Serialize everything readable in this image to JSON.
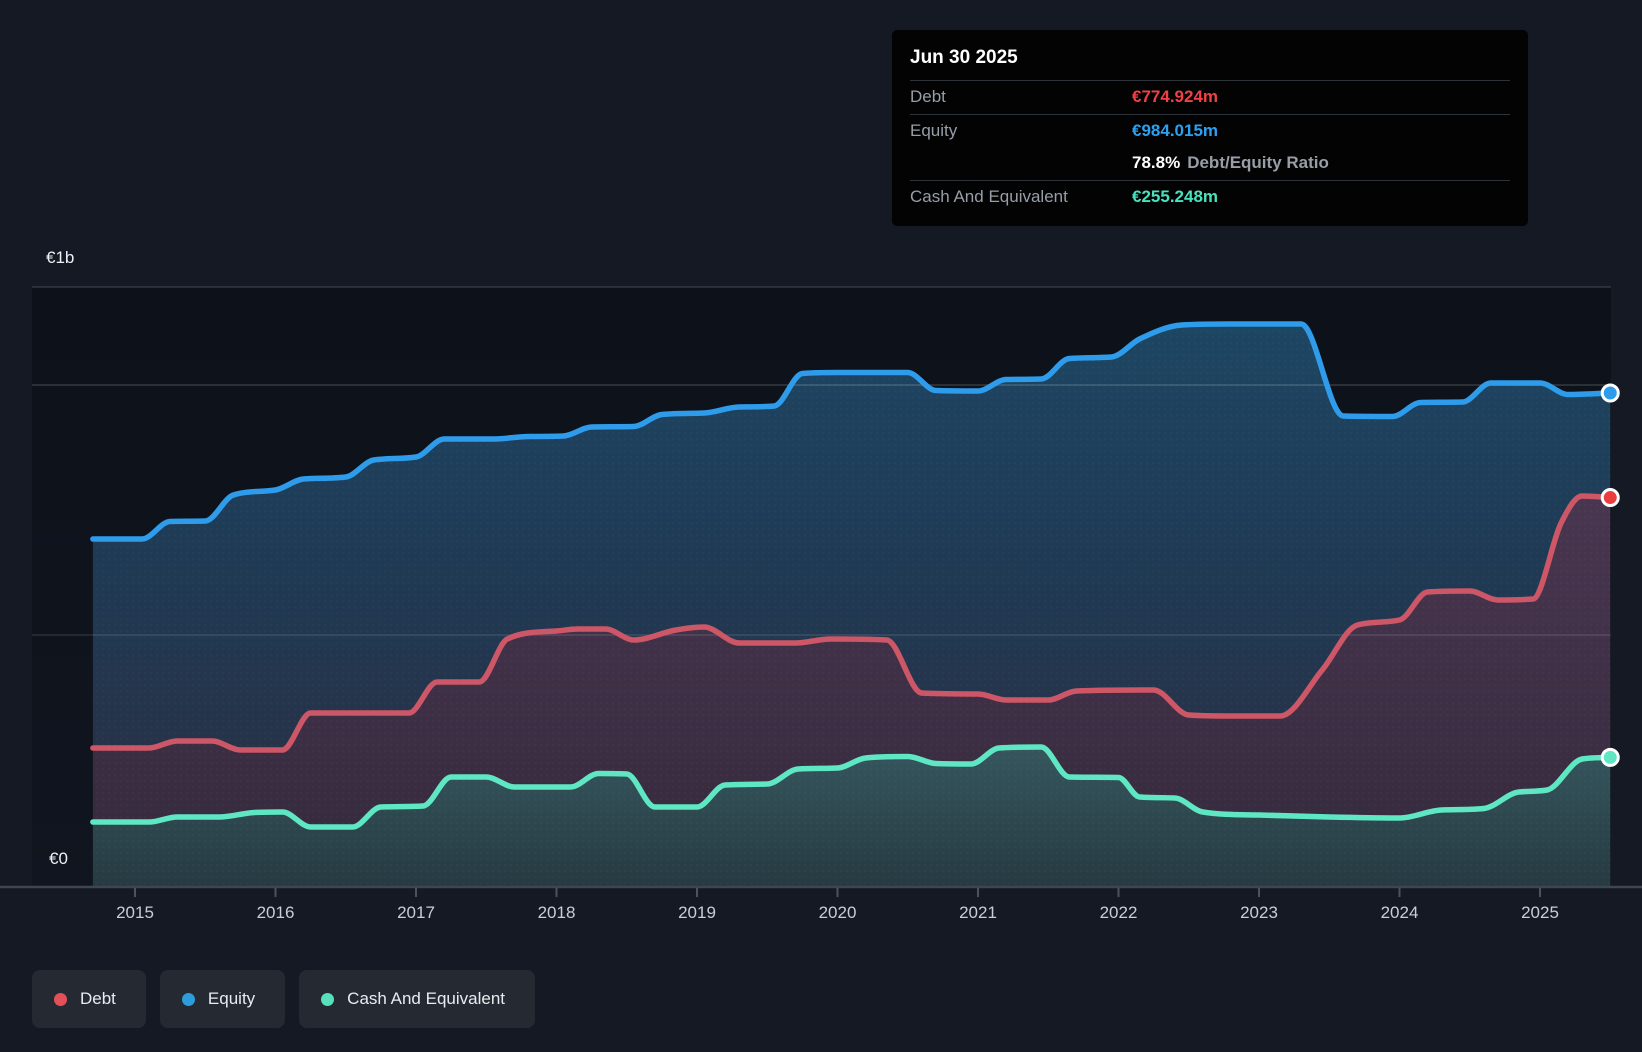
{
  "y_axis": {
    "top_label": "€1b",
    "bottom_label": "€0"
  },
  "x_axis": {
    "years": [
      "2015",
      "2016",
      "2017",
      "2018",
      "2019",
      "2020",
      "2021",
      "2022",
      "2023",
      "2024",
      "2025"
    ]
  },
  "tooltip": {
    "date": "Jun 30 2025",
    "debt_label": "Debt",
    "debt_value": "€774.924m",
    "equity_label": "Equity",
    "equity_value": "€984.015m",
    "ratio_value": "78.8%",
    "ratio_label": "Debt/Equity Ratio",
    "cash_label": "Cash And Equivalent",
    "cash_value": "€255.248m"
  },
  "legend": {
    "items": [
      {
        "label": "Debt",
        "color": "#e4505a"
      },
      {
        "label": "Equity",
        "color": "#2d9cdb"
      },
      {
        "label": "Cash And Equivalent",
        "color": "#57dfbe"
      }
    ]
  },
  "colors": {
    "page_bg": "#141923",
    "plot_bg": "#0e131c",
    "equity_line": "#2e9ceb",
    "debt_line": "#cd5766",
    "cash_line": "#5fe6c3",
    "debt_dot": "#ea3d3d",
    "tooltip_debt_value": "#ef4146",
    "tooltip_equity_value": "#2da1f0",
    "tooltip_cash_value": "#47e2bf"
  },
  "chart_data": {
    "type": "area",
    "title": "Debt to Equity History with Cash And Equivalent",
    "x_unit": "year (quarterly points)",
    "x_range": [
      2014.7,
      2025.5
    ],
    "y_axis_label_top": "€1b",
    "y_axis_label_bottom": "€0",
    "y_range_eur_m": [
      0,
      1196
    ],
    "gridlines_eur_m": [
      500,
      1000
    ],
    "legend_position": "bottom-left",
    "series": [
      {
        "name": "Equity",
        "color": "#2e9ceb",
        "points": [
          [
            2014.7,
            692
          ],
          [
            2015.05,
            692
          ],
          [
            2015.25,
            727
          ],
          [
            2015.5,
            728
          ],
          [
            2015.7,
            780
          ],
          [
            2016.0,
            790
          ],
          [
            2016.2,
            812
          ],
          [
            2016.5,
            816
          ],
          [
            2016.7,
            850
          ],
          [
            2017.0,
            856
          ],
          [
            2017.2,
            892
          ],
          [
            2017.55,
            892
          ],
          [
            2017.8,
            897
          ],
          [
            2018.05,
            898
          ],
          [
            2018.25,
            916
          ],
          [
            2018.55,
            917
          ],
          [
            2018.75,
            941
          ],
          [
            2019.05,
            944
          ],
          [
            2019.3,
            956
          ],
          [
            2019.55,
            958
          ],
          [
            2019.75,
            1023
          ],
          [
            2020.0,
            1025
          ],
          [
            2020.5,
            1025
          ],
          [
            2020.7,
            989
          ],
          [
            2021.0,
            988
          ],
          [
            2021.2,
            1011
          ],
          [
            2021.45,
            1012
          ],
          [
            2021.65,
            1053
          ],
          [
            2021.95,
            1056
          ],
          [
            2022.15,
            1092
          ],
          [
            2022.45,
            1120
          ],
          [
            2022.8,
            1122
          ],
          [
            2023.3,
            1122
          ],
          [
            2023.6,
            938
          ],
          [
            2023.95,
            937
          ],
          [
            2024.15,
            965
          ],
          [
            2024.45,
            966
          ],
          [
            2024.65,
            1004
          ],
          [
            2025.0,
            1004
          ],
          [
            2025.2,
            981
          ],
          [
            2025.5,
            984.015
          ]
        ]
      },
      {
        "name": "Debt",
        "color": "#cd5766",
        "points": [
          [
            2014.7,
            274
          ],
          [
            2015.1,
            274
          ],
          [
            2015.3,
            288
          ],
          [
            2015.55,
            288
          ],
          [
            2015.75,
            270
          ],
          [
            2016.05,
            270
          ],
          [
            2016.25,
            344
          ],
          [
            2016.95,
            344
          ],
          [
            2017.15,
            406
          ],
          [
            2017.45,
            406
          ],
          [
            2017.65,
            492
          ],
          [
            2018.0,
            508
          ],
          [
            2018.15,
            512
          ],
          [
            2018.35,
            512
          ],
          [
            2018.55,
            490
          ],
          [
            2018.85,
            510
          ],
          [
            2019.05,
            516
          ],
          [
            2019.3,
            484
          ],
          [
            2019.7,
            484
          ],
          [
            2019.95,
            492
          ],
          [
            2020.35,
            490
          ],
          [
            2020.6,
            384
          ],
          [
            2021.0,
            382
          ],
          [
            2021.2,
            370
          ],
          [
            2021.5,
            370
          ],
          [
            2021.7,
            388
          ],
          [
            2022.25,
            390
          ],
          [
            2022.5,
            340
          ],
          [
            2022.8,
            338
          ],
          [
            2023.15,
            338
          ],
          [
            2023.45,
            430
          ],
          [
            2023.7,
            520
          ],
          [
            2024.0,
            530
          ],
          [
            2024.2,
            586
          ],
          [
            2024.5,
            588
          ],
          [
            2024.7,
            570
          ],
          [
            2024.95,
            572
          ],
          [
            2025.15,
            724
          ],
          [
            2025.3,
            778
          ],
          [
            2025.5,
            774.924
          ]
        ]
      },
      {
        "name": "Cash And Equivalent",
        "color": "#5fe6c3",
        "points": [
          [
            2014.7,
            126
          ],
          [
            2015.1,
            126
          ],
          [
            2015.3,
            136
          ],
          [
            2015.6,
            136
          ],
          [
            2015.85,
            145
          ],
          [
            2016.05,
            146
          ],
          [
            2016.25,
            116
          ],
          [
            2016.55,
            116
          ],
          [
            2016.75,
            156
          ],
          [
            2017.05,
            158
          ],
          [
            2017.25,
            216
          ],
          [
            2017.5,
            216
          ],
          [
            2017.7,
            196
          ],
          [
            2018.1,
            196
          ],
          [
            2018.3,
            223
          ],
          [
            2018.5,
            222
          ],
          [
            2018.7,
            156
          ],
          [
            2019.0,
            156
          ],
          [
            2019.2,
            200
          ],
          [
            2019.5,
            202
          ],
          [
            2019.72,
            232
          ],
          [
            2020.0,
            234
          ],
          [
            2020.2,
            254
          ],
          [
            2020.5,
            257
          ],
          [
            2020.7,
            243
          ],
          [
            2020.95,
            242
          ],
          [
            2021.15,
            274
          ],
          [
            2021.45,
            276
          ],
          [
            2021.65,
            216
          ],
          [
            2022.0,
            215
          ],
          [
            2022.15,
            176
          ],
          [
            2022.4,
            174
          ],
          [
            2022.6,
            146
          ],
          [
            2023.0,
            140
          ],
          [
            2023.5,
            136
          ],
          [
            2024.0,
            134
          ],
          [
            2024.3,
            150
          ],
          [
            2024.6,
            153
          ],
          [
            2024.85,
            186
          ],
          [
            2025.05,
            190
          ],
          [
            2025.3,
            252
          ],
          [
            2025.5,
            255.248
          ]
        ]
      }
    ],
    "end_markers": {
      "date": "Jun 30 2025",
      "equity_m": 984.015,
      "debt_m": 774.924,
      "cash_m": 255.248,
      "debt_equity_ratio": "78.8%"
    }
  }
}
